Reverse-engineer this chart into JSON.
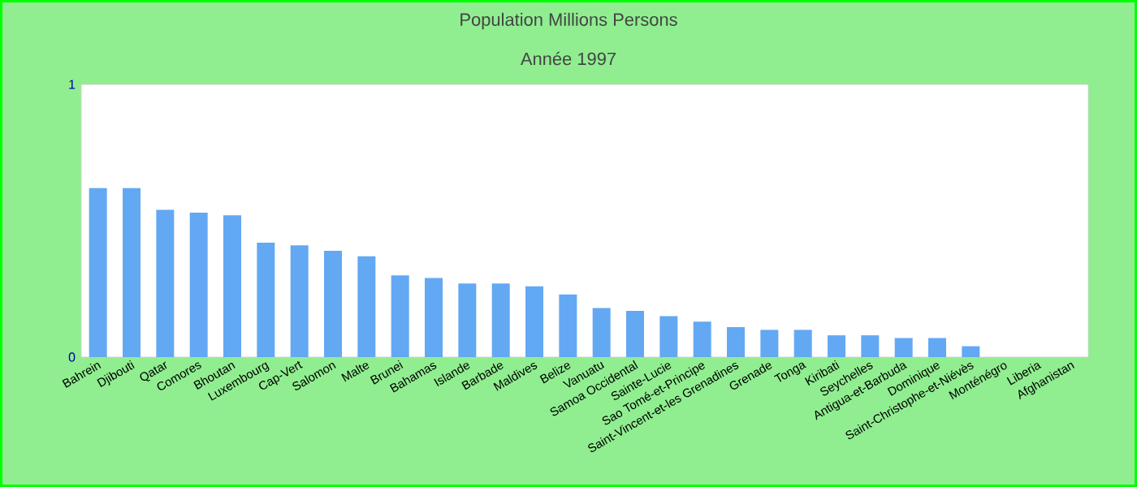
{
  "chart_data": {
    "type": "bar",
    "title": "Population Millions Persons",
    "subtitle": "Année 1997",
    "categories": [
      "Bahrein",
      "Djibouti",
      "Qatar",
      "Comores",
      "Bhoutan",
      "Luxembourg",
      "Cap-Vert",
      "Salomon",
      "Malte",
      "Brunei",
      "Bahamas",
      "Islande",
      "Barbade",
      "Maldives",
      "Belize",
      "Vanuatu",
      "Samoa Occidental",
      "Sainte-Lucie",
      "Sao Tomé-et-Principe",
      "Saint-Vincent-et-les Grenadines",
      "Grenade",
      "Tonga",
      "Kiribati",
      "Seychelles",
      "Antigua-et-Barbuda",
      "Dominique",
      "Saint-Christophe-et-Niévès",
      "Monténégro",
      "Liberia",
      "Afghanistan"
    ],
    "values": [
      0.62,
      0.62,
      0.54,
      0.53,
      0.52,
      0.42,
      0.41,
      0.39,
      0.37,
      0.3,
      0.29,
      0.27,
      0.27,
      0.26,
      0.23,
      0.18,
      0.17,
      0.15,
      0.13,
      0.11,
      0.1,
      0.1,
      0.08,
      0.08,
      0.07,
      0.07,
      0.04,
      null,
      null,
      null
    ],
    "color": "#63a8f3",
    "ylim": [
      0,
      1
    ],
    "yticks": [
      0,
      1
    ]
  }
}
